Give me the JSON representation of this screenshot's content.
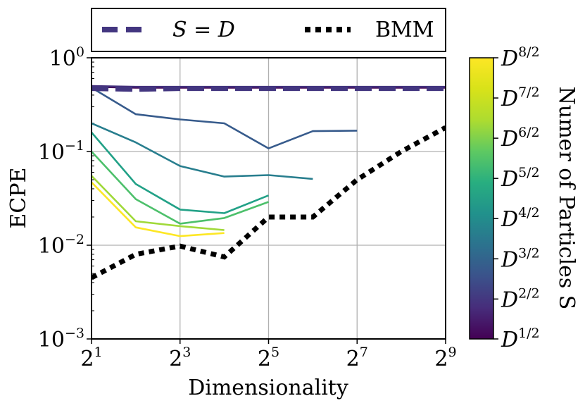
{
  "chart_data": {
    "type": "line",
    "xscale": "log2",
    "yscale": "log10",
    "xlabel": "Dimensionality",
    "ylabel": "ECPE",
    "xlim": [
      2,
      512
    ],
    "ylim": [
      0.001,
      1
    ],
    "grid": true,
    "x_ticks": [
      {
        "value": 2,
        "base": "2",
        "exp": "1"
      },
      {
        "value": 8,
        "base": "2",
        "exp": "3"
      },
      {
        "value": 32,
        "base": "2",
        "exp": "5"
      },
      {
        "value": 128,
        "base": "2",
        "exp": "7"
      },
      {
        "value": 512,
        "base": "2",
        "exp": "9"
      }
    ],
    "y_ticks": [
      {
        "value": 1,
        "base": "10",
        "exp": "0"
      },
      {
        "value": 0.1,
        "base": "10",
        "exp": "−1"
      },
      {
        "value": 0.01,
        "base": "10",
        "exp": "−2"
      },
      {
        "value": 0.001,
        "base": "10",
        "exp": "−3"
      }
    ],
    "legend": {
      "position": "top, above plot",
      "entries": [
        {
          "label": "S = D",
          "style": "dashed",
          "color": "#433680"
        },
        {
          "label": "BMM",
          "style": "dotted",
          "color": "#000000"
        }
      ]
    },
    "series": [
      {
        "name": "D^{1/2}",
        "frac": 0.0,
        "x": [
          2,
          4,
          8,
          16,
          32,
          64,
          128,
          256,
          512
        ],
        "y": [
          0.49,
          0.48,
          0.48,
          0.48,
          0.48,
          0.48,
          0.48,
          0.48,
          0.48
        ]
      },
      {
        "name": "D^{2/2}",
        "frac": 0.142,
        "x": [
          2,
          4,
          8,
          16,
          32,
          64,
          128,
          256,
          512
        ],
        "y": [
          0.5,
          0.49,
          0.49,
          0.49,
          0.49,
          0.49,
          0.49,
          0.49,
          0.49
        ]
      },
      {
        "name": "D^{3/2}",
        "frac": 0.285,
        "x": [
          2,
          4,
          8,
          16,
          32,
          64,
          128
        ],
        "y": [
          0.48,
          0.25,
          0.22,
          0.2,
          0.108,
          0.165,
          0.167
        ]
      },
      {
        "name": "D^{4/2}",
        "frac": 0.428,
        "x": [
          2,
          4,
          8,
          16,
          32,
          64
        ],
        "y": [
          0.2,
          0.125,
          0.07,
          0.054,
          0.056,
          0.051
        ]
      },
      {
        "name": "D^{5/2}",
        "frac": 0.571,
        "x": [
          2,
          4,
          8,
          16,
          32
        ],
        "y": [
          0.16,
          0.045,
          0.024,
          0.022,
          0.034
        ]
      },
      {
        "name": "D^{6/2}",
        "frac": 0.714,
        "x": [
          2,
          4,
          8,
          16,
          32
        ],
        "y": [
          0.1,
          0.031,
          0.017,
          0.0195,
          0.029
        ]
      },
      {
        "name": "D^{7/2}",
        "frac": 0.857,
        "x": [
          2,
          4,
          8,
          16
        ],
        "y": [
          0.055,
          0.018,
          0.016,
          0.0145
        ]
      },
      {
        "name": "D^{8/2}",
        "frac": 1.0,
        "x": [
          2,
          4,
          8,
          16
        ],
        "y": [
          0.047,
          0.0155,
          0.0125,
          0.0135
        ]
      }
    ],
    "reference_lines": [
      {
        "name": "S = D",
        "style": "dashed",
        "color": "#433680",
        "x": [
          2,
          4,
          8,
          16,
          32,
          64,
          128,
          256,
          512
        ],
        "y": [
          0.47,
          0.46,
          0.47,
          0.47,
          0.47,
          0.47,
          0.47,
          0.47,
          0.47
        ]
      },
      {
        "name": "BMM",
        "style": "dotted",
        "color": "#000000",
        "x": [
          2,
          4,
          8,
          16,
          32,
          64,
          128,
          256,
          512
        ],
        "y": [
          0.0045,
          0.008,
          0.0098,
          0.0075,
          0.02,
          0.02,
          0.05,
          0.1,
          0.18
        ]
      }
    ],
    "colorbar": {
      "label": "Numer of Particles S",
      "colormap": "viridis",
      "ticks": [
        {
          "base": "D",
          "exp": "8/2",
          "frac": 1.0
        },
        {
          "base": "D",
          "exp": "7/2",
          "frac": 0.857
        },
        {
          "base": "D",
          "exp": "6/2",
          "frac": 0.714
        },
        {
          "base": "D",
          "exp": "5/2",
          "frac": 0.571
        },
        {
          "base": "D",
          "exp": "4/2",
          "frac": 0.428
        },
        {
          "base": "D",
          "exp": "3/2",
          "frac": 0.285
        },
        {
          "base": "D",
          "exp": "2/2",
          "frac": 0.142
        },
        {
          "base": "D",
          "exp": "1/2",
          "frac": 0.0
        }
      ]
    }
  }
}
